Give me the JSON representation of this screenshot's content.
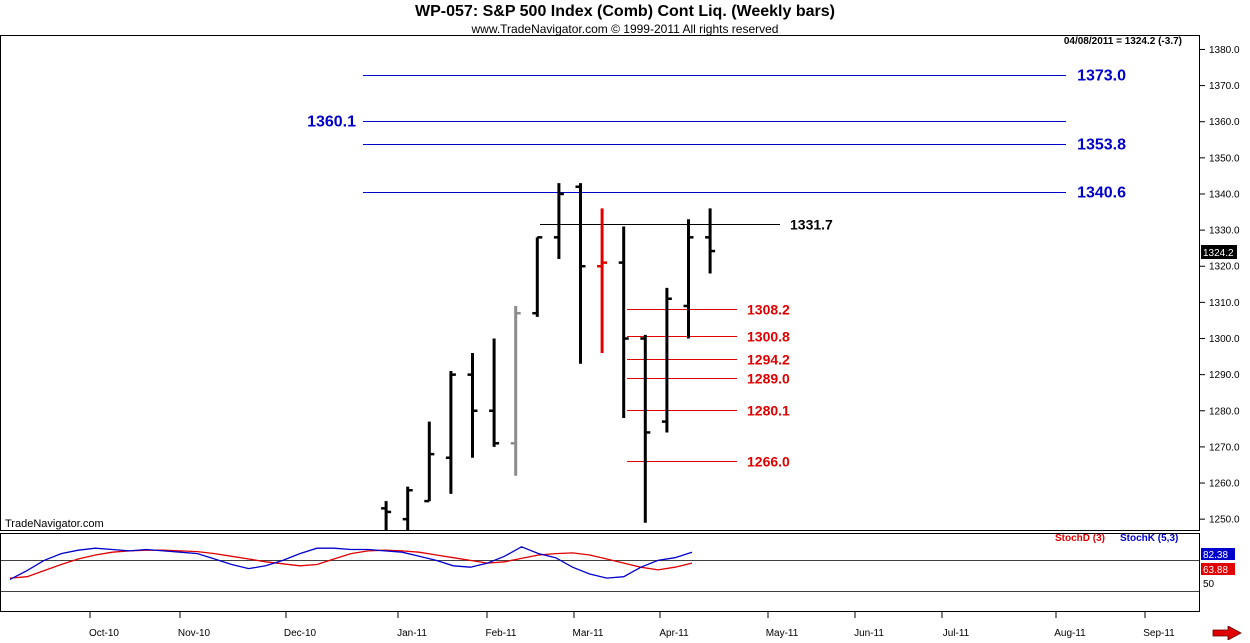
{
  "header": {
    "title": "WP-057:  S&P 500 Index (Comb) Cont Liq.  (Weekly bars)",
    "subtitle": "www.TradeNavigator.com © 1999-2011 All rights reserved",
    "readout": "04/08/2011 = 1324.2 (-3.7)",
    "brand": "TradeNavigator.com",
    "last_price_label": "1324.2"
  },
  "colors": {
    "up_bar": "#000000",
    "gray_bar": "#8c8c8c",
    "red_bar": "#e00000",
    "blue_level": "#0000cc",
    "red_level": "#e00000",
    "stochD": "#e00000",
    "stochK": "#0000cc",
    "arrow": "#e00000"
  },
  "chart_data": [
    {
      "type": "ohlc",
      "x_tick_labels": [
        "Oct-10",
        "Nov-10",
        "Dec-10",
        "Jan-11",
        "Feb-11",
        "Mar-11",
        "Apr-11",
        "May-11",
        "Jun-11",
        "Jul-11",
        "Aug-11",
        "Sep-11"
      ],
      "y_ticks": [
        1250,
        1260,
        1270,
        1280,
        1290,
        1300,
        1310,
        1320,
        1330,
        1340,
        1350,
        1360,
        1370,
        1380
      ],
      "ylim": [
        1247,
        1384
      ],
      "grid": false,
      "bars": [
        {
          "week": 16,
          "open": 1253,
          "high": 1255,
          "low": 1247,
          "close": 1252,
          "color": "black"
        },
        {
          "week": 17,
          "open": 1250,
          "high": 1259,
          "low": 1247,
          "close": 1258,
          "color": "black"
        },
        {
          "week": 18,
          "open": 1255,
          "high": 1277,
          "low": 1255,
          "close": 1268,
          "color": "black"
        },
        {
          "week": 19,
          "open": 1267,
          "high": 1291,
          "low": 1257,
          "close": 1290,
          "color": "black"
        },
        {
          "week": 20,
          "open": 1290,
          "high": 1296,
          "low": 1267,
          "close": 1280,
          "color": "black"
        },
        {
          "week": 21,
          "open": 1280,
          "high": 1300,
          "low": 1270,
          "close": 1271,
          "color": "black"
        },
        {
          "week": 22,
          "open": 1271,
          "high": 1309,
          "low": 1262,
          "close": 1307,
          "color": "gray"
        },
        {
          "week": 23,
          "open": 1307,
          "high": 1328,
          "low": 1306,
          "close": 1328,
          "color": "black"
        },
        {
          "week": 24,
          "open": 1328,
          "high": 1343,
          "low": 1322,
          "close": 1340,
          "color": "black"
        },
        {
          "week": 25,
          "open": 1342,
          "high": 1343,
          "low": 1293,
          "close": 1320,
          "color": "black"
        },
        {
          "week": 26,
          "open": 1320,
          "high": 1336,
          "low": 1296,
          "close": 1321,
          "color": "red"
        },
        {
          "week": 27,
          "open": 1321,
          "high": 1331,
          "low": 1278,
          "close": 1300,
          "color": "black"
        },
        {
          "week": 28,
          "open": 1300,
          "high": 1301,
          "low": 1249,
          "close": 1274,
          "color": "black"
        },
        {
          "week": 29,
          "open": 1277,
          "high": 1314,
          "low": 1274,
          "close": 1311,
          "color": "black"
        },
        {
          "week": 30,
          "open": 1309,
          "high": 1333,
          "low": 1300,
          "close": 1328,
          "color": "black"
        },
        {
          "week": 31,
          "open": 1328,
          "high": 1336,
          "low": 1318,
          "close": 1324.2,
          "color": "black"
        }
      ],
      "levels": [
        {
          "value": 1373.0,
          "label": "1373.0",
          "color": "blue",
          "side": "right"
        },
        {
          "value": 1360.1,
          "label": "1360.1",
          "color": "blue",
          "side": "left"
        },
        {
          "value": 1353.8,
          "label": "1353.8",
          "color": "blue",
          "side": "right"
        },
        {
          "value": 1340.6,
          "label": "1340.6",
          "color": "blue",
          "side": "right"
        },
        {
          "value": 1331.7,
          "label": "1331.7",
          "color": "black",
          "side": "right"
        },
        {
          "value": 1308.2,
          "label": "1308.2",
          "color": "red",
          "side": "right"
        },
        {
          "value": 1300.8,
          "label": "1300.8",
          "color": "red",
          "side": "right"
        },
        {
          "value": 1294.2,
          "label": "1294.2",
          "color": "red",
          "side": "right"
        },
        {
          "value": 1289.0,
          "label": "1289.0",
          "color": "red",
          "side": "right"
        },
        {
          "value": 1280.1,
          "label": "1280.1",
          "color": "red",
          "side": "right"
        },
        {
          "value": 1266.0,
          "label": "1266.0",
          "color": "red",
          "side": "right"
        }
      ]
    },
    {
      "type": "line",
      "series": [
        {
          "name": "StochD (3)",
          "color": "red",
          "values": [
            44,
            46,
            55,
            64,
            72,
            78,
            82,
            84,
            85,
            85,
            84,
            83,
            80,
            76,
            72,
            68,
            65,
            62,
            64,
            72,
            80,
            84,
            85,
            84,
            82,
            78,
            74,
            70,
            66,
            68,
            73,
            78,
            80,
            81,
            78,
            72,
            66,
            60,
            56,
            60,
            66
          ]
        },
        {
          "name": "StochK (5,3)",
          "color": "blue",
          "values": [
            42,
            55,
            70,
            80,
            85,
            88,
            86,
            84,
            86,
            84,
            82,
            80,
            72,
            64,
            58,
            62,
            70,
            80,
            88,
            88,
            86,
            86,
            84,
            82,
            76,
            70,
            62,
            60,
            66,
            76,
            90,
            80,
            74,
            60,
            50,
            44,
            46,
            60,
            70,
            74,
            82
          ]
        }
      ],
      "y_labels": [
        "82.38",
        "63.88",
        "50"
      ],
      "ylim": [
        0,
        100
      ],
      "legend": "top-right"
    }
  ]
}
